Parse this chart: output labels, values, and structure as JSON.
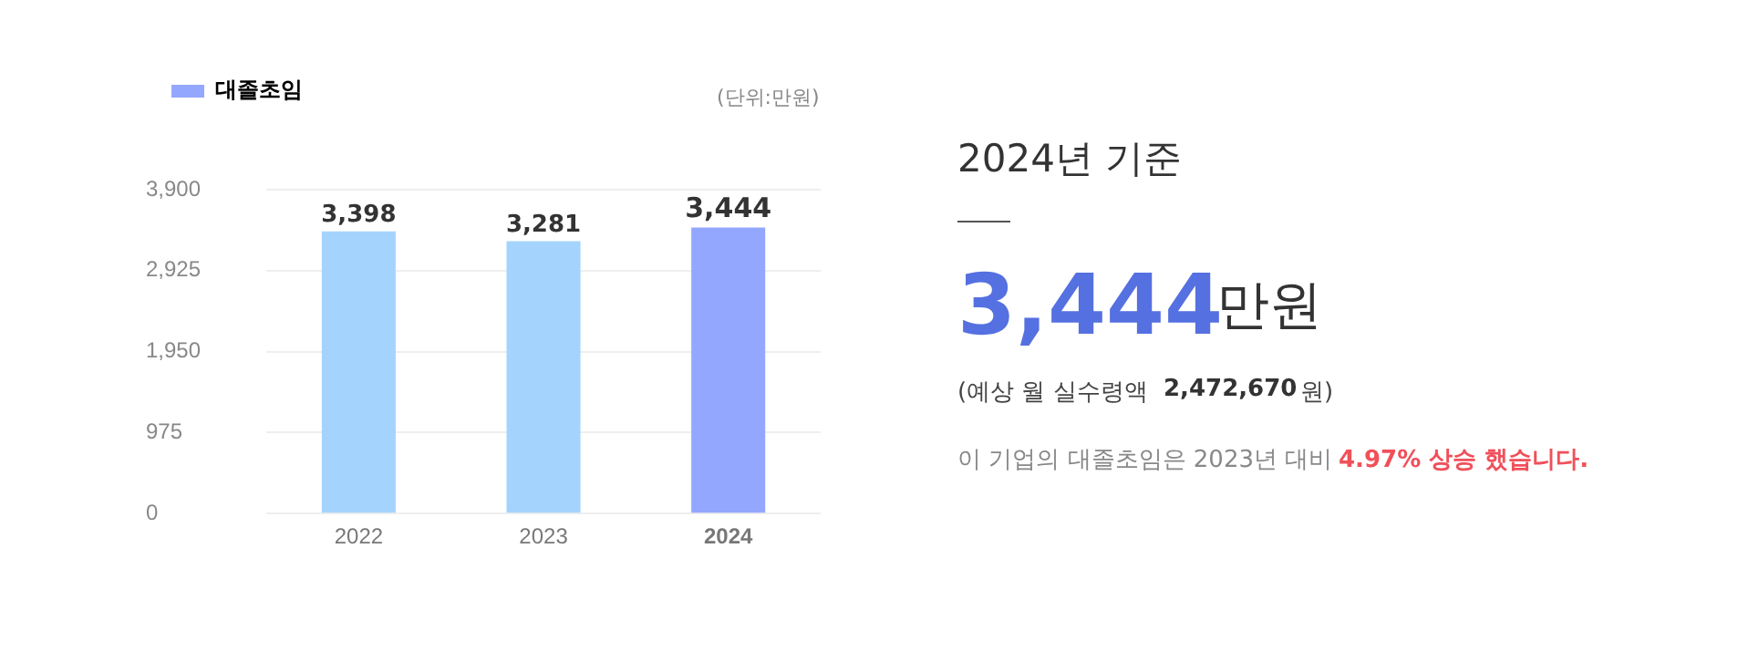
{
  "chart_data": {
    "type": "bar",
    "categories": [
      "2022",
      "2023",
      "2024"
    ],
    "series": [
      {
        "name": "대졸초임",
        "color": "#94a7fe",
        "colors": [
          "#a4d4fe",
          "#a4d4fe",
          "#94a7fe"
        ],
        "values": [
          3398,
          3281,
          3444
        ],
        "value_labels": [
          "3,398",
          "3,281",
          "3,444"
        ]
      }
    ],
    "ylim": [
      0,
      3900
    ],
    "yticks": [
      0,
      975,
      {
        "value": 1950,
        "label": "1,950"
      },
      {
        "value": 2925,
        "label": "2,925"
      },
      {
        "value": 3900,
        "label": "3,900"
      }
    ],
    "grid": "y",
    "legend": "top left",
    "annotations": [
      "(단위:만원)",
      "2024년 기준",
      "3,444",
      "만원",
      "(예상 월 실수령액",
      "2,472,670",
      "원)",
      "이 기업의 대졸초임은 2023년 대비",
      "4.97% 상승 했습니다."
    ]
  }
}
